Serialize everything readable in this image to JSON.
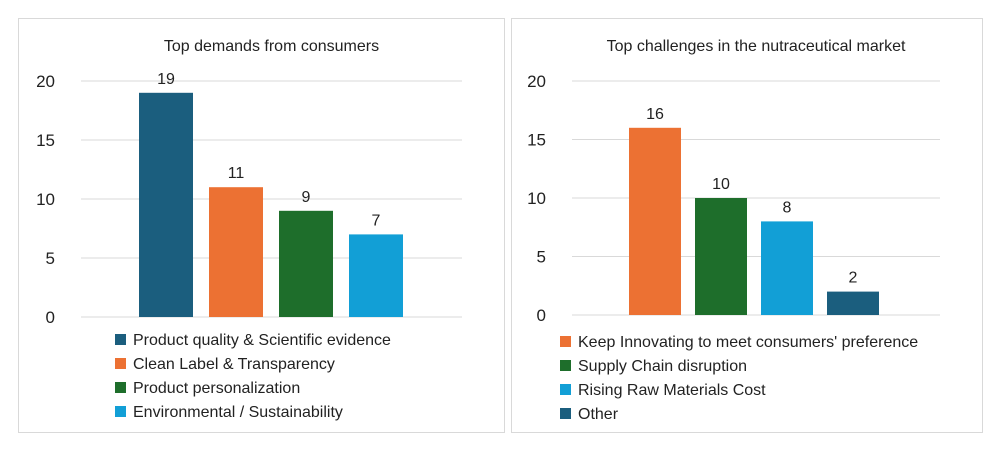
{
  "chart_data": [
    {
      "type": "bar",
      "title": "Top demands from consumers",
      "categories": [
        "Product quality & Scientific evidence",
        "Clean Label & Transparency",
        "Product personalization",
        "Environmental / Sustainability"
      ],
      "values": [
        19,
        11,
        9,
        7
      ],
      "data_labels": [
        "19",
        "11",
        "9",
        "7"
      ],
      "colors": [
        "#1b5e7e",
        "#ec7133",
        "#1e6e2b",
        "#129fd6"
      ],
      "ylim": [
        0,
        20
      ],
      "yticks": [
        "0",
        "5",
        "10",
        "15",
        "20"
      ],
      "grid": true,
      "legend": "bottom"
    },
    {
      "type": "bar",
      "title": "Top challenges in the nutraceutical market",
      "categories": [
        "Keep Innovating to meet consumers' preference",
        "Supply Chain disruption",
        "Rising Raw Materials Cost",
        "Other"
      ],
      "values": [
        16,
        10,
        8,
        2
      ],
      "data_labels": [
        "16",
        "10",
        "8",
        "2"
      ],
      "colors": [
        "#ec7133",
        "#1e6e2b",
        "#129fd6",
        "#1b5e7e"
      ],
      "ylim": [
        0,
        20
      ],
      "yticks": [
        "0",
        "5",
        "10",
        "15",
        "20"
      ],
      "grid": true,
      "legend": "bottom"
    }
  ]
}
